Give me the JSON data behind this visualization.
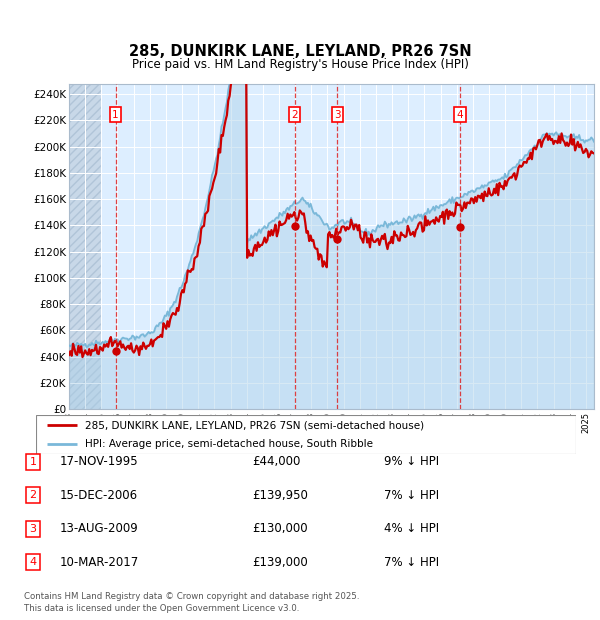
{
  "title": "285, DUNKIRK LANE, LEYLAND, PR26 7SN",
  "subtitle": "Price paid vs. HM Land Registry's House Price Index (HPI)",
  "ylabel_ticks": [
    "£0",
    "£20K",
    "£40K",
    "£60K",
    "£80K",
    "£100K",
    "£120K",
    "£140K",
    "£160K",
    "£180K",
    "£200K",
    "£220K",
    "£240K"
  ],
  "y_values": [
    0,
    20000,
    40000,
    60000,
    80000,
    100000,
    120000,
    140000,
    160000,
    180000,
    200000,
    220000,
    240000
  ],
  "ylim": [
    0,
    248000
  ],
  "x_start_year": 1993,
  "x_end_year": 2025,
  "hpi_color": "#7ab8d9",
  "hpi_fill_color": "#aad0e8",
  "price_color": "#cc0000",
  "bg_color": "#ddeeff",
  "transaction_dates": [
    1995.88,
    2006.96,
    2009.62,
    2017.19
  ],
  "transaction_prices": [
    44000,
    139950,
    130000,
    139000
  ],
  "transaction_labels": [
    "1",
    "2",
    "3",
    "4"
  ],
  "legend_line1": "285, DUNKIRK LANE, LEYLAND, PR26 7SN (semi-detached house)",
  "legend_line2": "HPI: Average price, semi-detached house, South Ribble",
  "table_data": [
    [
      "1",
      "17-NOV-1995",
      "£44,000",
      "9% ↓ HPI"
    ],
    [
      "2",
      "15-DEC-2006",
      "£139,950",
      "7% ↓ HPI"
    ],
    [
      "3",
      "13-AUG-2009",
      "£130,000",
      "4% ↓ HPI"
    ],
    [
      "4",
      "10-MAR-2017",
      "£139,000",
      "7% ↓ HPI"
    ]
  ],
  "footer": "Contains HM Land Registry data © Crown copyright and database right 2025.\nThis data is licensed under the Open Government Licence v3.0."
}
